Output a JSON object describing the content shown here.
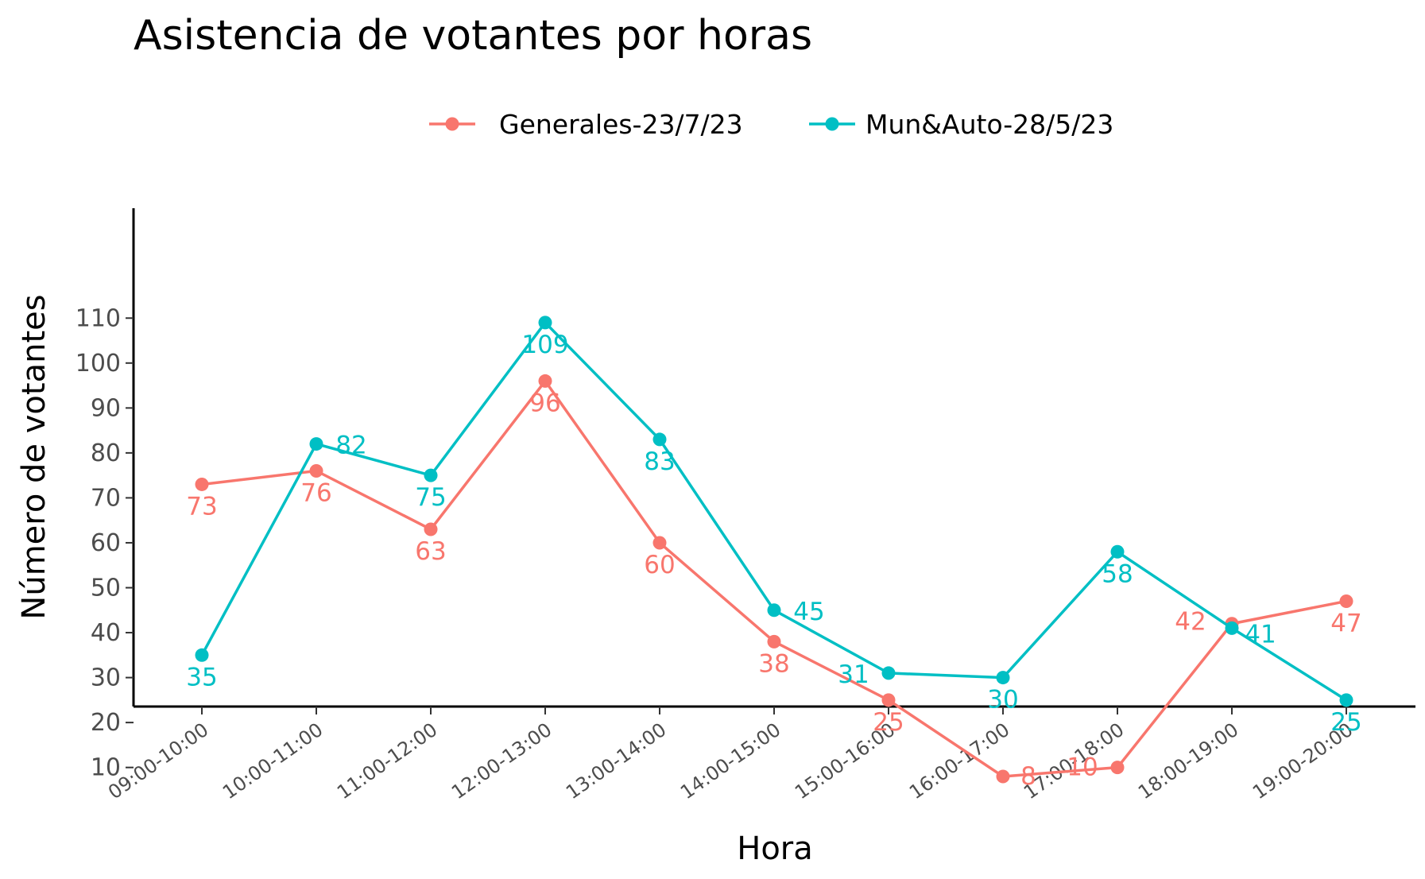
{
  "chart_data": {
    "type": "line",
    "title": "Asistencia de votantes por horas",
    "xlabel": "Hora",
    "ylabel": "Número de votantes",
    "categories": [
      "09:00-10:00",
      "10:00-11:00",
      "11:00-12:00",
      "12:00-13:00",
      "13:00-14:00",
      "14:00-15:00",
      "15:00-16:00",
      "16:00-17:00",
      "17:00-18:00",
      "18:00-19:00",
      "19:00-20:00"
    ],
    "yticks": [
      10,
      20,
      30,
      40,
      50,
      60,
      70,
      80,
      90,
      100,
      110
    ],
    "ylim": [
      3,
      114
    ],
    "grid": false,
    "legend_position": "top",
    "series": [
      {
        "name": "Generales-23/7/23",
        "color": "#F8766D",
        "values": [
          73,
          76,
          63,
          96,
          60,
          38,
          25,
          8,
          10,
          42,
          47
        ]
      },
      {
        "name": "Mun&Auto-28/5/23",
        "color": "#00BFC4",
        "values": [
          35,
          82,
          75,
          109,
          83,
          45,
          31,
          30,
          58,
          41,
          25
        ]
      }
    ]
  }
}
